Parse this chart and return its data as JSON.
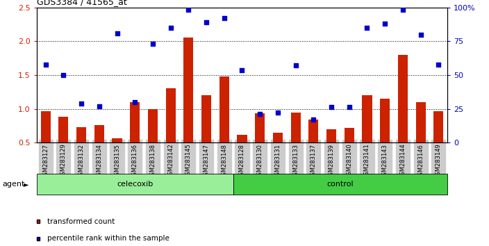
{
  "title": "GDS3384 / 41565_at",
  "samples": [
    "GSM283127",
    "GSM283129",
    "GSM283132",
    "GSM283134",
    "GSM283135",
    "GSM283136",
    "GSM283138",
    "GSM283142",
    "GSM283145",
    "GSM283147",
    "GSM283148",
    "GSM283128",
    "GSM283130",
    "GSM283131",
    "GSM283133",
    "GSM283137",
    "GSM283139",
    "GSM283140",
    "GSM283141",
    "GSM283143",
    "GSM283144",
    "GSM283146",
    "GSM283149"
  ],
  "bar_values": [
    0.97,
    0.88,
    0.73,
    0.76,
    0.57,
    1.1,
    1.0,
    1.3,
    2.05,
    1.2,
    1.48,
    0.62,
    0.93,
    0.65,
    0.95,
    0.84,
    0.7,
    0.72,
    1.2,
    1.15,
    1.8,
    1.1,
    0.97
  ],
  "dot_values": [
    1.65,
    1.5,
    1.08,
    1.04,
    2.12,
    1.1,
    1.96,
    2.2,
    2.47,
    2.28,
    2.34,
    1.57,
    0.92,
    0.95,
    1.64,
    0.84,
    1.03,
    1.03,
    2.2,
    2.26,
    2.47,
    2.1,
    1.65
  ],
  "celecoxib_count": 11,
  "control_count": 12,
  "bar_color": "#cc2200",
  "dot_color": "#0000cc",
  "ylim": [
    0.5,
    2.5
  ],
  "y_right_ticks": [
    0,
    25,
    50,
    75,
    100
  ],
  "y_left_ticks": [
    0.5,
    1.0,
    1.5,
    2.0,
    2.5
  ],
  "dotted_lines": [
    1.0,
    1.5,
    2.0
  ],
  "celecoxib_color": "#99ee99",
  "control_color": "#44cc44",
  "agent_label": "agent",
  "celecoxib_label": "celecoxib",
  "control_label": "control",
  "legend_bar_label": "transformed count",
  "legend_dot_label": "percentile rank within the sample",
  "bar_width": 0.55,
  "bar_bottom": 0.5
}
